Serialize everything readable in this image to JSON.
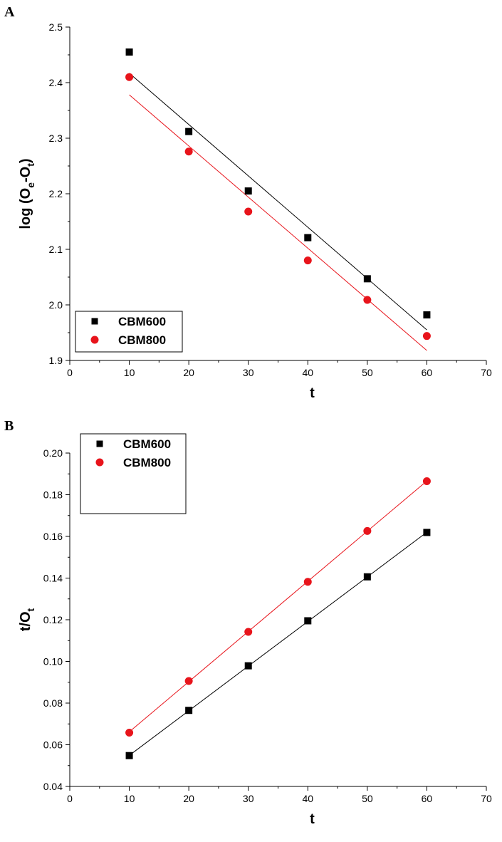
{
  "chart_data": [
    {
      "id": "A",
      "panel_label": "A",
      "type": "scatter",
      "xlabel": "t",
      "ylabel": {
        "base": "log (O",
        "sub1": "e",
        "mid": "-O",
        "sub2": "t",
        "end": ")"
      },
      "xlim": [
        0,
        70
      ],
      "ylim": [
        1.9,
        2.5
      ],
      "xticks": [
        0,
        10,
        20,
        30,
        40,
        50,
        60,
        70
      ],
      "yticks": [
        1.9,
        2.0,
        2.1,
        2.2,
        2.3,
        2.4,
        2.5
      ],
      "ytick_decimals": 1,
      "legend_position": "bottom-left",
      "series": [
        {
          "name": "CBM600",
          "marker": "square",
          "color": "#000000",
          "x": [
            10,
            20,
            30,
            40,
            50,
            60
          ],
          "y": [
            2.455,
            2.312,
            2.205,
            2.121,
            2.047,
            1.982
          ],
          "fit": {
            "x": [
              10,
              60
            ],
            "y": [
              2.417,
              1.955
            ]
          }
        },
        {
          "name": "CBM800",
          "marker": "circle",
          "color": "#e8141b",
          "x": [
            10,
            20,
            30,
            40,
            50,
            60
          ],
          "y": [
            2.41,
            2.276,
            2.168,
            2.08,
            2.009,
            1.944
          ],
          "fit": {
            "x": [
              10,
              60
            ],
            "y": [
              2.378,
              1.918
            ]
          }
        }
      ]
    },
    {
      "id": "B",
      "panel_label": "B",
      "type": "scatter",
      "xlabel": "t",
      "ylabel": {
        "base": "t/O",
        "sub1": "t",
        "mid": "",
        "sub2": "",
        "end": ""
      },
      "xlim": [
        0,
        70
      ],
      "ylim": [
        0.04,
        0.2
      ],
      "xticks": [
        0,
        10,
        20,
        30,
        40,
        50,
        60,
        70
      ],
      "yticks": [
        0.04,
        0.06,
        0.08,
        0.1,
        0.12,
        0.14,
        0.16,
        0.18,
        0.2
      ],
      "ytick_decimals": 2,
      "legend_position": "top-left",
      "series": [
        {
          "name": "CBM600",
          "marker": "square",
          "color": "#000000",
          "x": [
            10,
            20,
            30,
            40,
            50,
            60
          ],
          "y": [
            0.0548,
            0.0765,
            0.0979,
            0.1195,
            0.1406,
            0.1619
          ],
          "fit": {
            "x": [
              10,
              60
            ],
            "y": [
              0.0549,
              0.162
            ]
          }
        },
        {
          "name": "CBM800",
          "marker": "circle",
          "color": "#e8141b",
          "x": [
            10,
            20,
            30,
            40,
            50,
            60
          ],
          "y": [
            0.0658,
            0.0906,
            0.1142,
            0.1382,
            0.1626,
            0.1865
          ],
          "fit": {
            "x": [
              10,
              60
            ],
            "y": [
              0.0662,
              0.1866
            ]
          }
        }
      ]
    }
  ]
}
